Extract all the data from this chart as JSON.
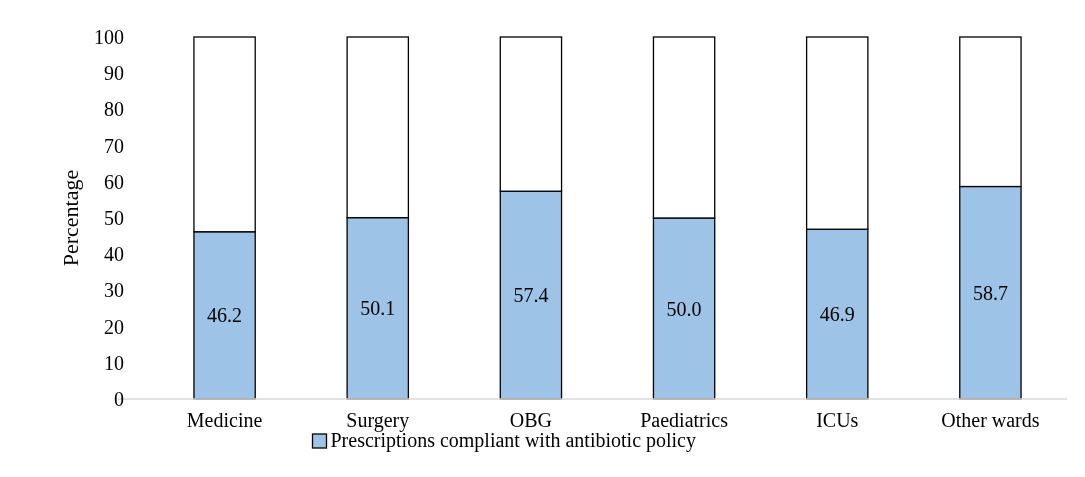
{
  "chart_data": {
    "type": "bar",
    "stacked": true,
    "ylabel": "Percentage",
    "categories": [
      "Medicine",
      "Surgery",
      "OBG",
      "Paediatrics",
      "ICUs",
      "Other wards"
    ],
    "series": [
      {
        "name": "Prescriptions  compliant with antibiotic policy",
        "color": "#9dc3e6",
        "values": [
          46.2,
          50.1,
          57.4,
          50.0,
          46.9,
          58.7
        ],
        "value_labels": [
          "46.2",
          "50.1",
          "57.4",
          "50.0",
          "46.9",
          "58.7"
        ]
      },
      {
        "color": "#ffffff",
        "values": [
          53.8,
          49.9,
          42.6,
          50.0,
          53.1,
          41.3
        ]
      }
    ],
    "ylim": [
      0,
      100
    ],
    "yticks": [
      0,
      10,
      20,
      30,
      40,
      50,
      60,
      70,
      80,
      90,
      100
    ],
    "grid": false,
    "legend": "bottom"
  }
}
